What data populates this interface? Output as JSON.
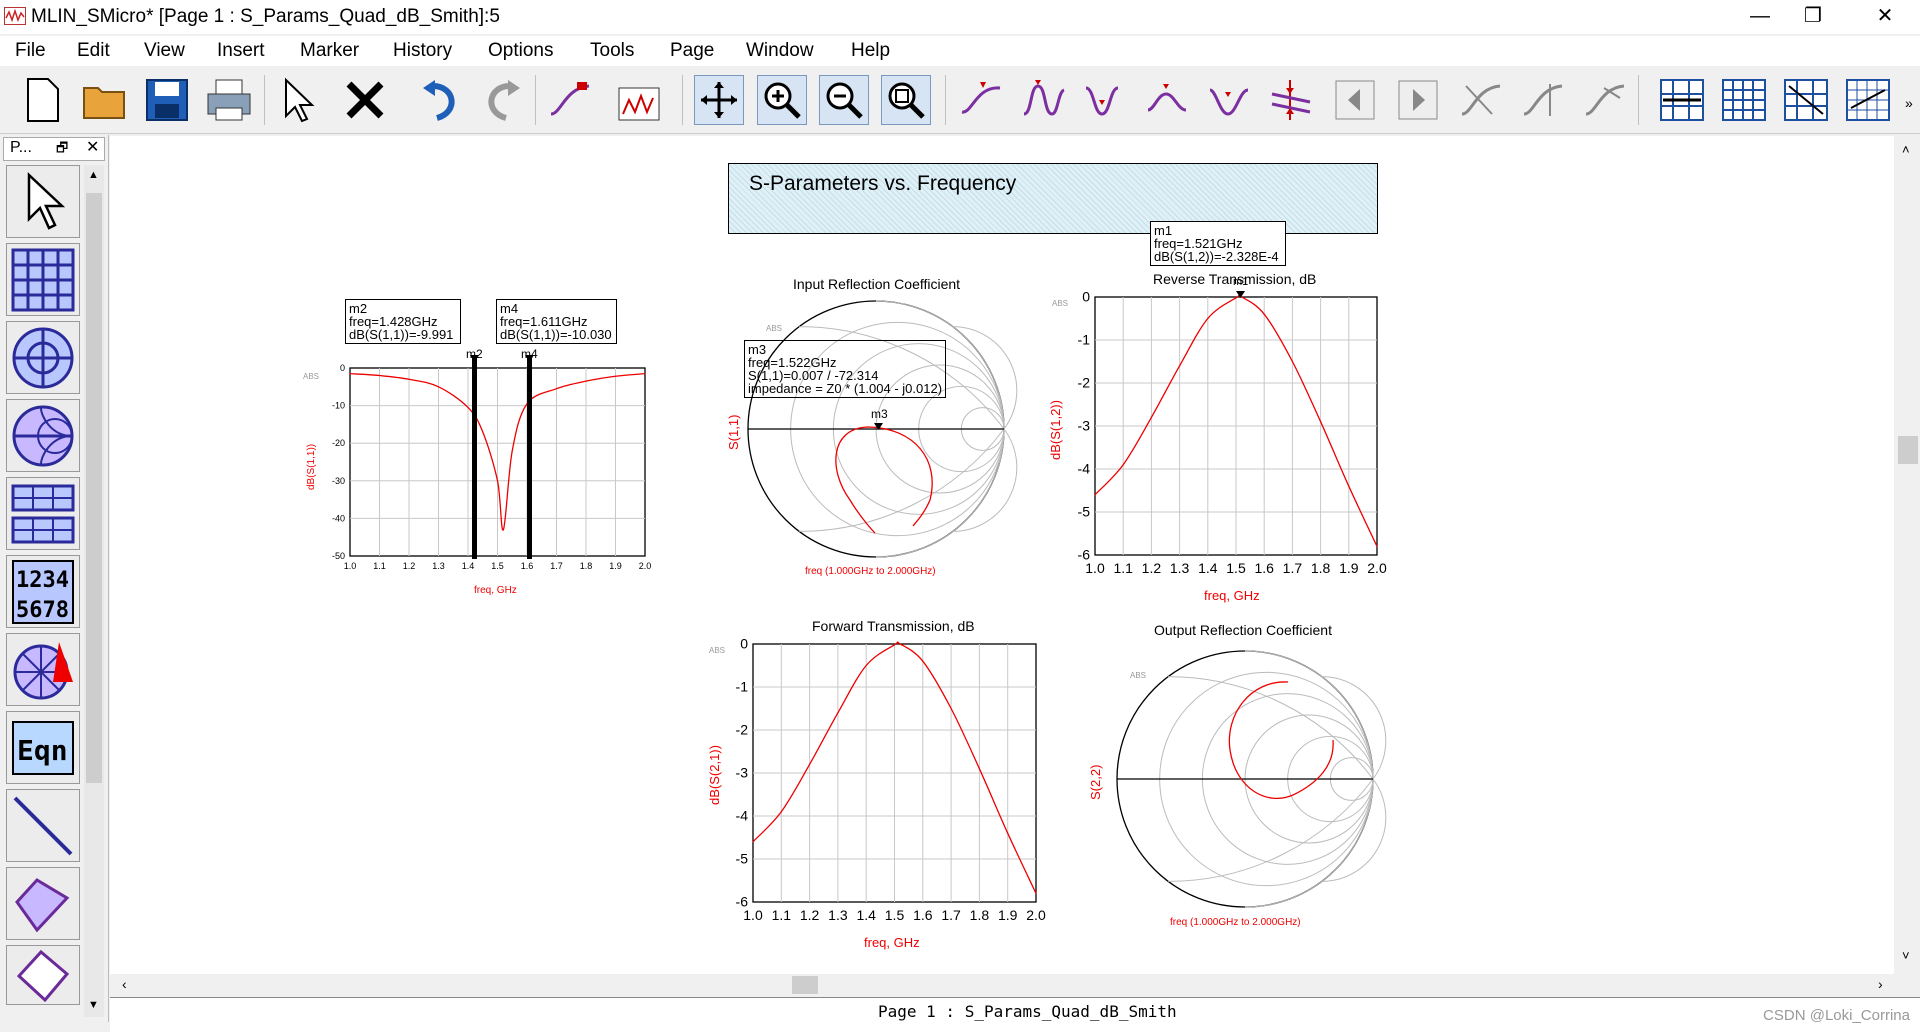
{
  "window": {
    "title": "MLIN_SMicro* [Page 1 : S_Params_Quad_dB_Smith]:5",
    "minimize": "—",
    "restore": "❐",
    "close": "✕"
  },
  "menu": [
    "File",
    "Edit",
    "View",
    "Insert",
    "Marker",
    "History",
    "Options",
    "Tools",
    "Page",
    "Window",
    "Help"
  ],
  "palette": {
    "title": "P...",
    "pin": "🗗",
    "close": "✕"
  },
  "page": {
    "title": "S-Parameters vs. Frequency"
  },
  "plots": {
    "s11_db": {
      "ylabel": "dB(S(1,1))",
      "xlabel": "freq, GHz",
      "abs": "ABS"
    },
    "smith_in": {
      "title": "Input Reflection Coefficient",
      "ylabel": "S(1,1)",
      "xlabel": "freq (1.000GHz to 2.000GHz)",
      "abs": "ABS"
    },
    "s12_db": {
      "title": "Reverse Transmission, dB",
      "ylabel": "dB(S(1,2))",
      "xlabel": "freq, GHz",
      "abs": "ABS"
    },
    "s21_db": {
      "title": "Forward Transmission, dB",
      "ylabel": "dB(S(2,1))",
      "xlabel": "freq, GHz",
      "abs": "ABS"
    },
    "smith_out": {
      "title": "Output Reflection Coefficient",
      "ylabel": "S(2,2)",
      "xlabel": "freq (1.000GHz to 2.000GHz)",
      "abs": "ABS"
    }
  },
  "markers": {
    "m1": {
      "name": "m1",
      "line1": "freq=1.521GHz",
      "line2": "dB(S(1,2))=-2.328E-4"
    },
    "m2": {
      "name": "m2",
      "line1": "freq=1.428GHz",
      "line2": "dB(S(1,1))=-9.991"
    },
    "m3": {
      "name": "m3",
      "line1": "freq=1.522GHz",
      "line2": "S(1,1)=0.007 / -72.314",
      "line3": "impedance = Z0 * (1.004 - j0.012)"
    },
    "m4": {
      "name": "m4",
      "line1": "freq=1.611GHz",
      "line2": "dB(S(1,1))=-10.030"
    }
  },
  "status": {
    "page": "Page 1 : S_Params_Quad_dB_Smith",
    "watermark": "CSDN @Loki_Corrina"
  },
  "chart_data": [
    {
      "type": "line",
      "title": "",
      "xlabel": "freq, GHz",
      "ylabel": "dB(S(1,1))",
      "xlim": [
        1.0,
        2.0
      ],
      "ylim": [
        -50,
        0
      ],
      "x": [
        1.0,
        1.1,
        1.2,
        1.3,
        1.4,
        1.45,
        1.5,
        1.52,
        1.55,
        1.6,
        1.7,
        1.8,
        1.9,
        2.0
      ],
      "series": [
        {
          "values": [
            -1.5,
            -2.0,
            -3.0,
            -5.0,
            -10.5,
            -17,
            -30,
            -43,
            -22,
            -9.5,
            -5.5,
            -3.5,
            -2.2,
            -1.5
          ]
        }
      ],
      "xticks": [
        "1.0",
        "1.1",
        "1.2",
        "1.3",
        "1.4",
        "1.5",
        "1.6",
        "1.7",
        "1.8",
        "1.9",
        "2.0"
      ],
      "yticks": [
        "0",
        "-10",
        "-20",
        "-30",
        "-40",
        "-50"
      ]
    },
    {
      "type": "smith",
      "title": "Input Reflection Coefficient",
      "ylabel": "S(1,1)",
      "freq_range": "1.000GHz to 2.000GHz"
    },
    {
      "type": "line",
      "title": "Reverse Transmission, dB",
      "xlabel": "freq, GHz",
      "ylabel": "dB(S(1,2))",
      "xlim": [
        1.0,
        2.0
      ],
      "ylim": [
        -6,
        0
      ],
      "x": [
        1.0,
        1.1,
        1.2,
        1.3,
        1.4,
        1.5,
        1.52,
        1.6,
        1.7,
        1.8,
        1.9,
        2.0
      ],
      "series": [
        {
          "values": [
            -4.6,
            -3.9,
            -2.8,
            -1.6,
            -0.5,
            -0.02,
            0.0,
            -0.4,
            -1.5,
            -2.9,
            -4.4,
            -5.8
          ]
        }
      ],
      "xticks": [
        "1.0",
        "1.1",
        "1.2",
        "1.3",
        "1.4",
        "1.5",
        "1.6",
        "1.7",
        "1.8",
        "1.9",
        "2.0"
      ],
      "yticks": [
        "0",
        "-1",
        "-2",
        "-3",
        "-4",
        "-5",
        "-6"
      ]
    },
    {
      "type": "line",
      "title": "Forward Transmission, dB",
      "xlabel": "freq, GHz",
      "ylabel": "dB(S(2,1))",
      "xlim": [
        1.0,
        2.0
      ],
      "ylim": [
        -6,
        0
      ],
      "x": [
        1.0,
        1.1,
        1.2,
        1.3,
        1.4,
        1.5,
        1.52,
        1.6,
        1.7,
        1.8,
        1.9,
        2.0
      ],
      "series": [
        {
          "values": [
            -4.6,
            -3.9,
            -2.8,
            -1.6,
            -0.5,
            -0.02,
            0.0,
            -0.4,
            -1.5,
            -2.9,
            -4.4,
            -5.8
          ]
        }
      ],
      "xticks": [
        "1.0",
        "1.1",
        "1.2",
        "1.3",
        "1.4",
        "1.5",
        "1.6",
        "1.7",
        "1.8",
        "1.9",
        "2.0"
      ],
      "yticks": [
        "0",
        "-1",
        "-2",
        "-3",
        "-4",
        "-5",
        "-6"
      ]
    },
    {
      "type": "smith",
      "title": "Output Reflection Coefficient",
      "ylabel": "S(2,2)",
      "freq_range": "1.000GHz to 2.000GHz"
    }
  ]
}
